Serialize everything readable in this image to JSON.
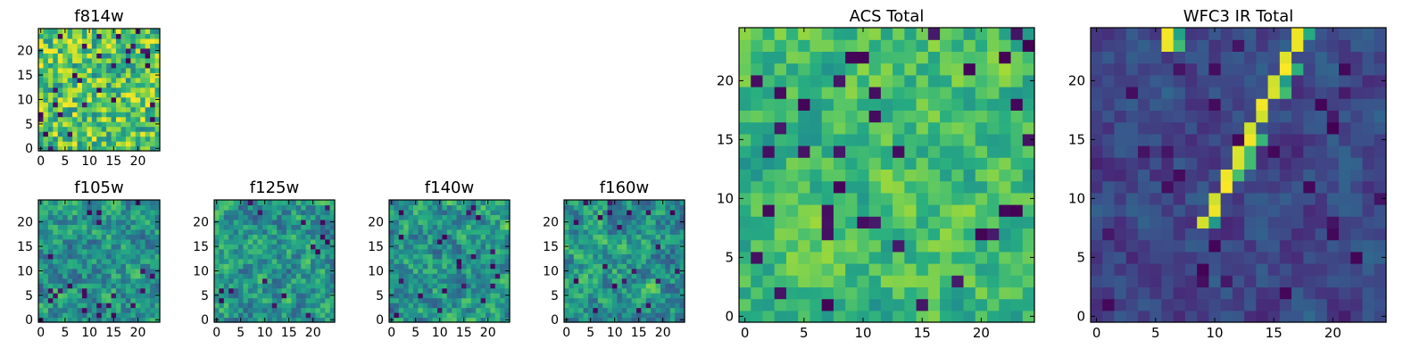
{
  "figure": {
    "colormap": "viridis",
    "grid": false,
    "panels_shown": [
      "f814w",
      "f105w",
      "f125w",
      "f140w",
      "f160w",
      "ACS Total",
      "WFC3 IR Total"
    ]
  },
  "chart_data": [
    {
      "id": "f814w",
      "type": "heatmap",
      "title": "f814w",
      "grid_size": 25,
      "xlim": [
        0,
        24
      ],
      "ylim": [
        0,
        24
      ],
      "xticks": [
        0,
        5,
        10,
        15,
        20
      ],
      "yticks": [
        0,
        5,
        10,
        15,
        20
      ],
      "value_range": [
        0,
        1
      ],
      "texture": "noise",
      "low_pixels": 0.05,
      "seed": 11
    },
    {
      "id": "f105w",
      "type": "heatmap",
      "title": "f105w",
      "grid_size": 25,
      "xlim": [
        0,
        24
      ],
      "ylim": [
        0,
        24
      ],
      "xticks": [
        0,
        5,
        10,
        15,
        20
      ],
      "yticks": [
        0,
        5,
        10,
        15,
        20
      ],
      "value_range": [
        0,
        1
      ],
      "texture": "smooth",
      "low_pixels": 0.03,
      "seed": 23
    },
    {
      "id": "f125w",
      "type": "heatmap",
      "title": "f125w",
      "grid_size": 25,
      "xlim": [
        0,
        24
      ],
      "ylim": [
        0,
        24
      ],
      "xticks": [
        0,
        5,
        10,
        15,
        20
      ],
      "yticks": [
        0,
        5,
        10,
        15,
        20
      ],
      "value_range": [
        0,
        1
      ],
      "texture": "smooth",
      "low_pixels": 0.03,
      "seed": 37
    },
    {
      "id": "f140w",
      "type": "heatmap",
      "title": "f140w",
      "grid_size": 25,
      "xlim": [
        0,
        24
      ],
      "ylim": [
        0,
        24
      ],
      "xticks": [
        0,
        5,
        10,
        15,
        20
      ],
      "yticks": [
        0,
        5,
        10,
        15,
        20
      ],
      "value_range": [
        0,
        1
      ],
      "texture": "smooth",
      "low_pixels": 0.04,
      "seed": 41
    },
    {
      "id": "f160w",
      "type": "heatmap",
      "title": "f160w",
      "grid_size": 25,
      "xlim": [
        0,
        24
      ],
      "ylim": [
        0,
        24
      ],
      "xticks": [
        0,
        5,
        10,
        15,
        20
      ],
      "yticks": [
        0,
        5,
        10,
        15,
        20
      ],
      "value_range": [
        0,
        1
      ],
      "texture": "smooth",
      "low_pixels": 0.04,
      "seed": 53
    },
    {
      "id": "acs_total",
      "type": "heatmap",
      "title": "ACS Total",
      "grid_size": 25,
      "xlim": [
        0,
        24
      ],
      "ylim": [
        0,
        24
      ],
      "xticks": [
        0,
        5,
        10,
        15,
        20
      ],
      "yticks": [
        0,
        5,
        10,
        15,
        20
      ],
      "value_range": [
        0,
        1
      ],
      "texture": "bright",
      "low_pixels": 0.04,
      "seed": 67
    },
    {
      "id": "wfc3_total",
      "type": "heatmap",
      "title": "WFC3 IR Total",
      "grid_size": 25,
      "xlim": [
        0,
        24
      ],
      "ylim": [
        0,
        24
      ],
      "xticks": [
        0,
        5,
        10,
        15,
        20
      ],
      "yticks": [
        0,
        5,
        10,
        15,
        20
      ],
      "value_range": [
        0,
        1
      ],
      "texture": "dark_with_streak",
      "low_pixels": 0.06,
      "seed": 79,
      "bright_cells": [
        [
          6,
          24
        ],
        [
          6,
          23
        ],
        [
          17,
          24
        ],
        [
          17,
          23
        ],
        [
          16,
          22
        ],
        [
          16,
          21
        ],
        [
          15,
          20
        ],
        [
          15,
          19
        ],
        [
          14,
          18
        ],
        [
          14,
          17
        ],
        [
          13,
          16
        ],
        [
          13,
          15
        ],
        [
          12,
          14
        ],
        [
          12,
          13
        ],
        [
          11,
          12
        ],
        [
          11,
          11
        ],
        [
          10,
          10
        ],
        [
          10,
          9
        ],
        [
          9,
          8
        ]
      ]
    }
  ]
}
